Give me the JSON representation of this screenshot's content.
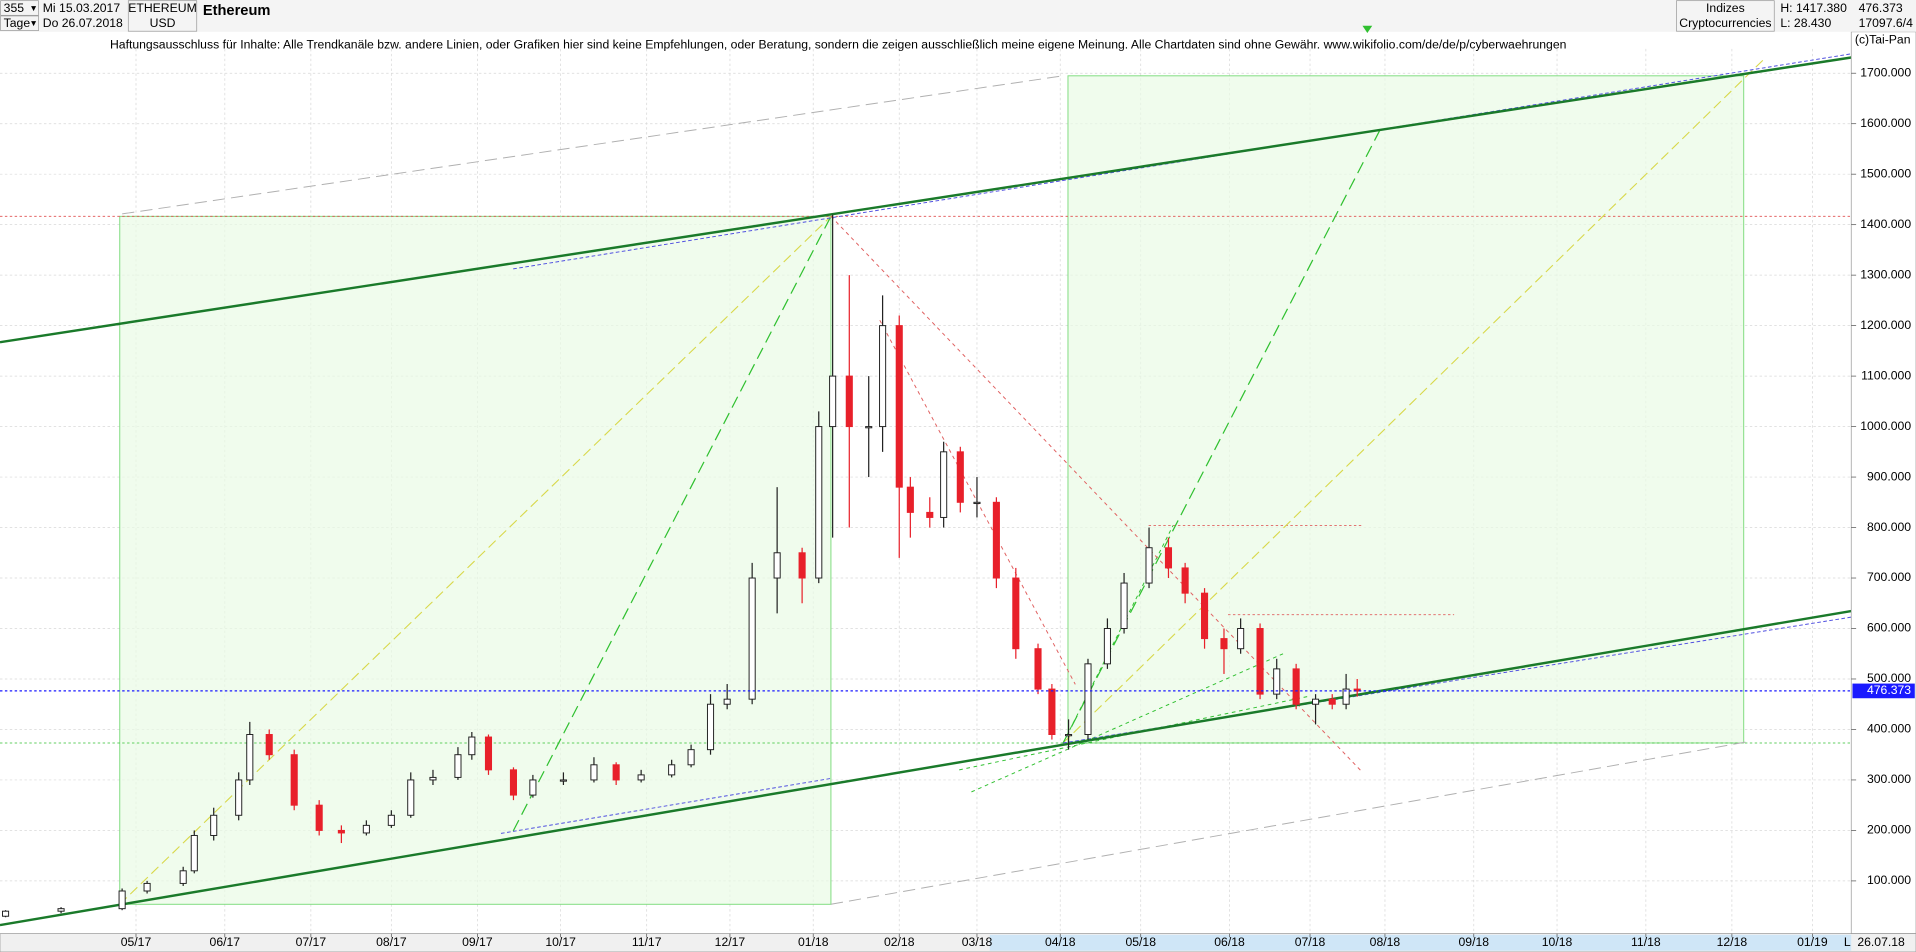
{
  "header": {
    "count": "355",
    "start_date": "Mi 15.03.2017",
    "period": "Tage",
    "end_date": "Do 26.07.2018",
    "symbol": "ETHEREUM",
    "currency": "USD",
    "name": "Ethereum",
    "group": "Indizes",
    "subgroup": "Cryptocurrencies",
    "high": "H: 1417.380",
    "low": "L: 28.430",
    "last": "476.373",
    "volume": "17097.6/4"
  },
  "disclaimer": "Haftungsausschluss für Inhalte: Alle Trendkanäle bzw. andere Linien, oder Grafiken hier sind keine Empfehlungen, oder Beratung, sondern die zeigen ausschließlich meine eigene Meinung. Alle Chartdaten sind ohne Gewähr.  www.wikifolio.com/de/de/p/cyberwaehrungen",
  "copyright": "(c)Tai-Pan",
  "footer": {
    "mode": "L",
    "date": "26.07.18"
  },
  "chart_data": {
    "type": "candlestick",
    "x": [
      2,
      22,
      44,
      53,
      66,
      70,
      77,
      86,
      90,
      97,
      106,
      115,
      123,
      132,
      141,
      148,
      156,
      165,
      170,
      176,
      185,
      192,
      203,
      214,
      222,
      231,
      242,
      249,
      256,
      262,
      271,
      280,
      289,
      295,
      300,
      306,
      313,
      318,
      324,
      328,
      335,
      340,
      346,
      352,
      359,
      366,
      374,
      379,
      385,
      392,
      399,
      405,
      414,
      421,
      427,
      434,
      441,
      447,
      454,
      460,
      467,
      474,
      480,
      485,
      489
    ],
    "open": [
      30,
      40,
      45,
      80,
      95,
      120,
      190,
      230,
      300,
      390,
      350,
      250,
      200,
      195,
      210,
      230,
      300,
      305,
      350,
      385,
      320,
      270,
      300,
      300,
      330,
      300,
      310,
      330,
      360,
      450,
      460,
      700,
      750,
      700,
      1000,
      1100,
      1000,
      1000,
      1200,
      880,
      830,
      820,
      950,
      850,
      850,
      700,
      560,
      480,
      390,
      390,
      530,
      600,
      690,
      760,
      720,
      670,
      580,
      560,
      600,
      470,
      520,
      450,
      460,
      450,
      480
    ],
    "high": [
      42,
      48,
      85,
      100,
      128,
      200,
      245,
      315,
      415,
      400,
      360,
      260,
      210,
      220,
      240,
      315,
      320,
      365,
      395,
      390,
      325,
      310,
      315,
      345,
      335,
      320,
      340,
      370,
      470,
      490,
      730,
      880,
      760,
      1030,
      1420,
      1300,
      1100,
      1260,
      1220,
      900,
      860,
      970,
      960,
      900,
      860,
      720,
      570,
      490,
      420,
      540,
      620,
      710,
      800,
      780,
      730,
      680,
      600,
      620,
      610,
      540,
      530,
      470,
      470,
      510,
      500
    ],
    "low": [
      28,
      36,
      42,
      75,
      90,
      115,
      180,
      220,
      290,
      340,
      240,
      190,
      175,
      190,
      205,
      225,
      290,
      300,
      340,
      310,
      260,
      265,
      290,
      295,
      290,
      295,
      305,
      325,
      350,
      440,
      450,
      630,
      650,
      690,
      780,
      800,
      900,
      950,
      740,
      780,
      800,
      800,
      830,
      820,
      680,
      540,
      470,
      380,
      360,
      380,
      520,
      590,
      680,
      700,
      650,
      560,
      510,
      550,
      460,
      460,
      440,
      410,
      440,
      440,
      465
    ],
    "close": [
      40,
      45,
      80,
      95,
      120,
      190,
      230,
      300,
      390,
      350,
      250,
      200,
      195,
      210,
      230,
      300,
      305,
      350,
      385,
      320,
      270,
      300,
      300,
      330,
      300,
      310,
      330,
      360,
      450,
      460,
      700,
      750,
      700,
      1000,
      1100,
      1000,
      1000,
      1200,
      880,
      830,
      820,
      950,
      850,
      850,
      700,
      560,
      480,
      390,
      390,
      530,
      600,
      690,
      760,
      720,
      670,
      580,
      560,
      600,
      470,
      520,
      450,
      460,
      450,
      480,
      476
    ],
    "up_color": "#222222",
    "down_color": "#e8202a",
    "xlim": [
      0,
      667
    ],
    "xticks": [
      {
        "value": 49,
        "label": "05/17"
      },
      {
        "value": 81,
        "label": "06/17"
      },
      {
        "value": 112,
        "label": "07/17"
      },
      {
        "value": 141,
        "label": "08/17"
      },
      {
        "value": 172,
        "label": "09/17"
      },
      {
        "value": 202,
        "label": "10/17"
      },
      {
        "value": 233,
        "label": "11/17"
      },
      {
        "value": 263,
        "label": "12/17"
      },
      {
        "value": 293,
        "label": "01/18"
      },
      {
        "value": 324,
        "label": "02/18"
      },
      {
        "value": 352,
        "label": "03/18"
      },
      {
        "value": 382,
        "label": "04/18"
      },
      {
        "value": 411,
        "label": "05/18"
      },
      {
        "value": 443,
        "label": "06/18"
      },
      {
        "value": 472,
        "label": "07/18"
      },
      {
        "value": 499,
        "label": "08/18"
      },
      {
        "value": 531,
        "label": "09/18"
      },
      {
        "value": 561,
        "label": "10/18"
      },
      {
        "value": 593,
        "label": "11/18"
      },
      {
        "value": 624,
        "label": "12/18"
      },
      {
        "value": 653,
        "label": "01/19"
      }
    ],
    "ylim": [
      -2,
      1782
    ],
    "yticks": [
      {
        "value": 100,
        "label": "100.000"
      },
      {
        "value": 200,
        "label": "200.000"
      },
      {
        "value": 300,
        "label": "300.000"
      },
      {
        "value": 400,
        "label": "400.000"
      },
      {
        "value": 500,
        "label": "500.000"
      },
      {
        "value": 600,
        "label": "600.000"
      },
      {
        "value": 700,
        "label": "700.000"
      },
      {
        "value": 800,
        "label": "800.000"
      },
      {
        "value": 900,
        "label": "900.000"
      },
      {
        "value": 1000,
        "label": "1000.000"
      },
      {
        "value": 1100,
        "label": "1100.000"
      },
      {
        "value": 1200,
        "label": "1200.000"
      },
      {
        "value": 1300,
        "label": "1300.000"
      },
      {
        "value": 1400,
        "label": "1400.000"
      },
      {
        "value": 1500,
        "label": "1500.000"
      },
      {
        "value": 1600,
        "label": "1600.000"
      },
      {
        "value": 1700,
        "label": "1700.000"
      }
    ],
    "last_price": {
      "value": 476.373,
      "label": "476.373"
    },
    "last_color": "#1a1aff",
    "grid": true
  }
}
